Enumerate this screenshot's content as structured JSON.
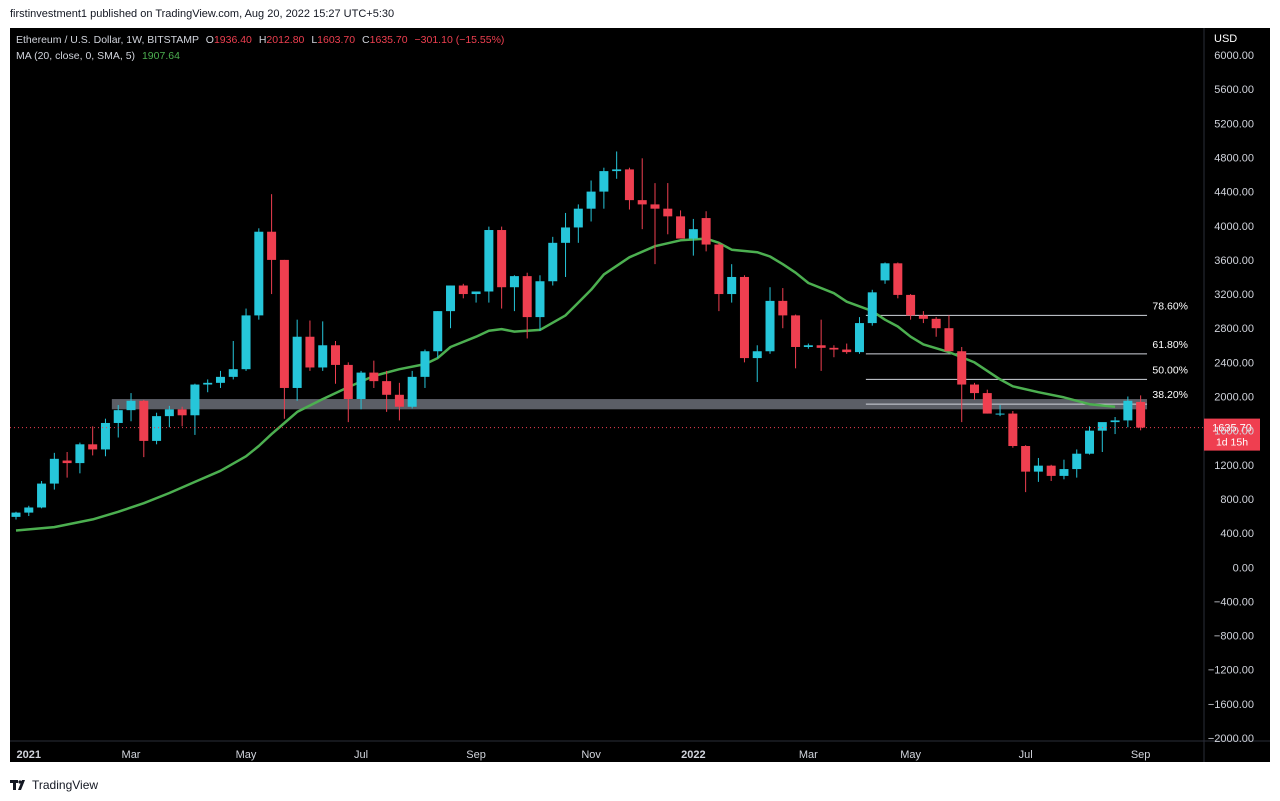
{
  "header": {
    "published_text": "firstinvestment1 published on TradingView.com, Aug 20, 2022 15:27 UTC+5:30"
  },
  "legend": {
    "symbol": "Ethereum / U.S. Dollar, 1W, BITSTAMP",
    "o_label": "O",
    "o_value": "1936.40",
    "h_label": "H",
    "h_value": "2012.80",
    "l_label": "L",
    "l_value": "1603.70",
    "c_label": "C",
    "c_value": "1635.70",
    "change": "−301.10 (−15.55%)",
    "ma_label": "MA (20, close, 0, SMA, 5)",
    "ma_value": "1907.64"
  },
  "price_axis": {
    "currency": "USD"
  },
  "price_marker": {
    "price": "1635.70",
    "countdown": "1d 15h"
  },
  "footer": {
    "brand": "TradingView"
  },
  "colors": {
    "up": "#26c6da",
    "down": "#ef3f50",
    "ma": "#4caf50",
    "zone": "#6b6f78",
    "fib": "#d1d4dc",
    "background": "#000000"
  },
  "chart_data": {
    "type": "candlestick",
    "instrument": "Ethereum / U.S. Dollar",
    "interval": "1W",
    "exchange": "BITSTAMP",
    "ylim": [
      -2000,
      6000
    ],
    "yticks": [
      {
        "value": 6000,
        "label": "6000.00"
      },
      {
        "value": 5600,
        "label": "5600.00"
      },
      {
        "value": 5200,
        "label": "5200.00"
      },
      {
        "value": 4800,
        "label": "4800.00"
      },
      {
        "value": 4400,
        "label": "4400.00"
      },
      {
        "value": 4000,
        "label": "4000.00"
      },
      {
        "value": 3600,
        "label": "3600.00"
      },
      {
        "value": 3200,
        "label": "3200.00"
      },
      {
        "value": 2800,
        "label": "2800.00"
      },
      {
        "value": 2400,
        "label": "2400.00"
      },
      {
        "value": 2000,
        "label": "2000.00"
      },
      {
        "value": 1600,
        "label": "1600.00"
      },
      {
        "value": 1200,
        "label": "1200.00"
      },
      {
        "value": 800,
        "label": "800.00"
      },
      {
        "value": 400,
        "label": "400.00"
      },
      {
        "value": 0,
        "label": "0.00"
      },
      {
        "value": -400,
        "label": "−400.00"
      },
      {
        "value": -800,
        "label": "−800.00"
      },
      {
        "value": -1200,
        "label": "−1200.00"
      },
      {
        "value": -1600,
        "label": "−1600.00"
      },
      {
        "value": -2000,
        "label": "−2000.00"
      }
    ],
    "xticks": [
      {
        "week": 1,
        "label": "2021",
        "bold": true
      },
      {
        "week": 9,
        "label": "Mar"
      },
      {
        "week": 18,
        "label": "May"
      },
      {
        "week": 27,
        "label": "Jul"
      },
      {
        "week": 36,
        "label": "Sep"
      },
      {
        "week": 45,
        "label": "Nov"
      },
      {
        "week": 53,
        "label": "2022",
        "bold": true
      },
      {
        "week": 62,
        "label": "Mar"
      },
      {
        "week": 70,
        "label": "May"
      },
      {
        "week": 79,
        "label": "Jul"
      },
      {
        "week": 88,
        "label": "Sep"
      }
    ],
    "candles": [
      {
        "o": 590,
        "h": 650,
        "l": 560,
        "c": 640
      },
      {
        "o": 640,
        "h": 720,
        "l": 600,
        "c": 700
      },
      {
        "o": 700,
        "h": 1010,
        "l": 690,
        "c": 980
      },
      {
        "o": 980,
        "h": 1340,
        "l": 910,
        "c": 1270
      },
      {
        "o": 1250,
        "h": 1350,
        "l": 1050,
        "c": 1220
      },
      {
        "o": 1220,
        "h": 1460,
        "l": 1100,
        "c": 1440
      },
      {
        "o": 1440,
        "h": 1650,
        "l": 1310,
        "c": 1380
      },
      {
        "o": 1380,
        "h": 1740,
        "l": 1300,
        "c": 1690
      },
      {
        "o": 1690,
        "h": 1900,
        "l": 1520,
        "c": 1840
      },
      {
        "o": 1840,
        "h": 2040,
        "l": 1710,
        "c": 1950
      },
      {
        "o": 1950,
        "h": 1960,
        "l": 1290,
        "c": 1480
      },
      {
        "o": 1480,
        "h": 1810,
        "l": 1440,
        "c": 1770
      },
      {
        "o": 1770,
        "h": 1890,
        "l": 1640,
        "c": 1850
      },
      {
        "o": 1850,
        "h": 1880,
        "l": 1650,
        "c": 1780
      },
      {
        "o": 1780,
        "h": 2150,
        "l": 1550,
        "c": 2140
      },
      {
        "o": 2140,
        "h": 2200,
        "l": 2050,
        "c": 2160
      },
      {
        "o": 2160,
        "h": 2300,
        "l": 2100,
        "c": 2230
      },
      {
        "o": 2230,
        "h": 2650,
        "l": 2200,
        "c": 2320
      },
      {
        "o": 2320,
        "h": 3030,
        "l": 2300,
        "c": 2950
      },
      {
        "o": 2950,
        "h": 3970,
        "l": 2900,
        "c": 3930
      },
      {
        "o": 3930,
        "h": 4370,
        "l": 3200,
        "c": 3600
      },
      {
        "o": 3600,
        "h": 3600,
        "l": 1740,
        "c": 2100
      },
      {
        "o": 2100,
        "h": 2900,
        "l": 1950,
        "c": 2700
      },
      {
        "o": 2700,
        "h": 2890,
        "l": 2300,
        "c": 2340
      },
      {
        "o": 2340,
        "h": 2880,
        "l": 2300,
        "c": 2600
      },
      {
        "o": 2600,
        "h": 2650,
        "l": 2150,
        "c": 2370
      },
      {
        "o": 2370,
        "h": 2400,
        "l": 1700,
        "c": 1970
      },
      {
        "o": 1970,
        "h": 2300,
        "l": 1850,
        "c": 2280
      },
      {
        "o": 2280,
        "h": 2420,
        "l": 2100,
        "c": 2180
      },
      {
        "o": 2180,
        "h": 2300,
        "l": 1820,
        "c": 2020
      },
      {
        "o": 2020,
        "h": 2160,
        "l": 1720,
        "c": 1880
      },
      {
        "o": 1880,
        "h": 2300,
        "l": 1860,
        "c": 2230
      },
      {
        "o": 2230,
        "h": 2550,
        "l": 2100,
        "c": 2530
      },
      {
        "o": 2530,
        "h": 3000,
        "l": 2450,
        "c": 3000
      },
      {
        "o": 3000,
        "h": 3300,
        "l": 2800,
        "c": 3300
      },
      {
        "o": 3300,
        "h": 3320,
        "l": 3150,
        "c": 3200
      },
      {
        "o": 3200,
        "h": 3230,
        "l": 3100,
        "c": 3230
      },
      {
        "o": 3230,
        "h": 3990,
        "l": 3100,
        "c": 3950
      },
      {
        "o": 3950,
        "h": 3990,
        "l": 3030,
        "c": 3280
      },
      {
        "o": 3280,
        "h": 3420,
        "l": 3000,
        "c": 3410
      },
      {
        "o": 3410,
        "h": 3450,
        "l": 2680,
        "c": 2930
      },
      {
        "o": 2930,
        "h": 3420,
        "l": 2770,
        "c": 3350
      },
      {
        "o": 3350,
        "h": 3870,
        "l": 3300,
        "c": 3800
      },
      {
        "o": 3800,
        "h": 4150,
        "l": 3400,
        "c": 3980
      },
      {
        "o": 3980,
        "h": 4250,
        "l": 3800,
        "c": 4200
      },
      {
        "o": 4200,
        "h": 4530,
        "l": 4050,
        "c": 4400
      },
      {
        "o": 4400,
        "h": 4680,
        "l": 4200,
        "c": 4640
      },
      {
        "o": 4640,
        "h": 4870,
        "l": 4550,
        "c": 4660
      },
      {
        "o": 4660,
        "h": 4680,
        "l": 4190,
        "c": 4300
      },
      {
        "o": 4300,
        "h": 4790,
        "l": 3960,
        "c": 4250
      },
      {
        "o": 4250,
        "h": 4500,
        "l": 3550,
        "c": 4200
      },
      {
        "o": 4200,
        "h": 4500,
        "l": 3900,
        "c": 4110
      },
      {
        "o": 4110,
        "h": 4180,
        "l": 3870,
        "c": 3850
      },
      {
        "o": 3850,
        "h": 4080,
        "l": 3650,
        "c": 3960
      },
      {
        "o": 4090,
        "h": 4170,
        "l": 3700,
        "c": 3780
      },
      {
        "o": 3780,
        "h": 3800,
        "l": 3000,
        "c": 3200
      },
      {
        "o": 3200,
        "h": 3550,
        "l": 3100,
        "c": 3400
      },
      {
        "o": 3400,
        "h": 3420,
        "l": 2400,
        "c": 2450
      },
      {
        "o": 2450,
        "h": 2600,
        "l": 2170,
        "c": 2530
      },
      {
        "o": 2530,
        "h": 3280,
        "l": 2500,
        "c": 3120
      },
      {
        "o": 3120,
        "h": 3270,
        "l": 2800,
        "c": 2950
      },
      {
        "o": 2950,
        "h": 2960,
        "l": 2330,
        "c": 2580
      },
      {
        "o": 2580,
        "h": 2620,
        "l": 2560,
        "c": 2600
      },
      {
        "o": 2600,
        "h": 2900,
        "l": 2300,
        "c": 2570
      },
      {
        "o": 2570,
        "h": 2600,
        "l": 2460,
        "c": 2550
      },
      {
        "o": 2550,
        "h": 2620,
        "l": 2500,
        "c": 2520
      },
      {
        "o": 2520,
        "h": 2930,
        "l": 2500,
        "c": 2860
      },
      {
        "o": 2860,
        "h": 3250,
        "l": 2830,
        "c": 3220
      },
      {
        "o": 3360,
        "h": 3570,
        "l": 3320,
        "c": 3560
      },
      {
        "o": 3560,
        "h": 3570,
        "l": 3150,
        "c": 3190
      },
      {
        "o": 3190,
        "h": 3200,
        "l": 2900,
        "c": 2950
      },
      {
        "o": 2950,
        "h": 3000,
        "l": 2860,
        "c": 2910
      },
      {
        "o": 2910,
        "h": 2930,
        "l": 2700,
        "c": 2800
      },
      {
        "o": 2800,
        "h": 2950,
        "l": 2550,
        "c": 2530
      },
      {
        "o": 2530,
        "h": 2580,
        "l": 1700,
        "c": 2140
      },
      {
        "o": 2140,
        "h": 2160,
        "l": 1960,
        "c": 2040
      },
      {
        "o": 2040,
        "h": 2080,
        "l": 1800,
        "c": 1800
      },
      {
        "o": 1800,
        "h": 1900,
        "l": 1770,
        "c": 1800
      },
      {
        "o": 1800,
        "h": 1830,
        "l": 1400,
        "c": 1420
      },
      {
        "o": 1420,
        "h": 1430,
        "l": 880,
        "c": 1120
      },
      {
        "o": 1120,
        "h": 1280,
        "l": 1000,
        "c": 1190
      },
      {
        "o": 1190,
        "h": 1200,
        "l": 1010,
        "c": 1070
      },
      {
        "o": 1070,
        "h": 1260,
        "l": 1030,
        "c": 1150
      },
      {
        "o": 1150,
        "h": 1380,
        "l": 1050,
        "c": 1330
      },
      {
        "o": 1330,
        "h": 1650,
        "l": 1320,
        "c": 1600
      },
      {
        "o": 1600,
        "h": 1680,
        "l": 1350,
        "c": 1700
      },
      {
        "o": 1700,
        "h": 1760,
        "l": 1560,
        "c": 1720
      },
      {
        "o": 1720,
        "h": 2000,
        "l": 1640,
        "c": 1950
      },
      {
        "o": 1936.4,
        "h": 2012.8,
        "l": 1603.7,
        "c": 1635.7
      }
    ],
    "moving_average": {
      "label": "MA (20, close, 0, SMA, 5)",
      "last_value": 1907.64,
      "points": [
        [
          0,
          430
        ],
        [
          3,
          470
        ],
        [
          6,
          560
        ],
        [
          8,
          650
        ],
        [
          10,
          750
        ],
        [
          12,
          870
        ],
        [
          14,
          1000
        ],
        [
          16,
          1130
        ],
        [
          18,
          1300
        ],
        [
          19,
          1420
        ],
        [
          20,
          1560
        ],
        [
          21,
          1690
        ],
        [
          22,
          1820
        ],
        [
          24,
          1970
        ],
        [
          26,
          2110
        ],
        [
          28,
          2240
        ],
        [
          30,
          2320
        ],
        [
          32,
          2380
        ],
        [
          33,
          2450
        ],
        [
          34,
          2580
        ],
        [
          36,
          2700
        ],
        [
          37,
          2770
        ],
        [
          38,
          2790
        ],
        [
          39,
          2760
        ],
        [
          41,
          2780
        ],
        [
          43,
          2950
        ],
        [
          44,
          3100
        ],
        [
          45,
          3250
        ],
        [
          46,
          3430
        ],
        [
          48,
          3630
        ],
        [
          50,
          3760
        ],
        [
          52,
          3830
        ],
        [
          54,
          3850
        ],
        [
          55,
          3800
        ],
        [
          56,
          3720
        ],
        [
          58,
          3690
        ],
        [
          59,
          3640
        ],
        [
          60,
          3550
        ],
        [
          61,
          3450
        ],
        [
          62,
          3330
        ],
        [
          64,
          3210
        ],
        [
          65,
          3110
        ],
        [
          67,
          3000
        ],
        [
          68,
          2900
        ],
        [
          69,
          2820
        ],
        [
          70,
          2700
        ],
        [
          71,
          2610
        ],
        [
          73,
          2520
        ],
        [
          75,
          2400
        ],
        [
          76,
          2300
        ],
        [
          77,
          2200
        ],
        [
          78,
          2120
        ],
        [
          80,
          2050
        ],
        [
          82,
          1990
        ],
        [
          84,
          1910
        ],
        [
          86,
          1880
        ]
      ]
    },
    "support_zone": {
      "from_week": 7.5,
      "to_week": 88.5,
      "low": 1850,
      "high": 1970
    },
    "fibonacci": [
      {
        "level": "78.60%",
        "price": 2950
      },
      {
        "level": "61.80%",
        "price": 2500
      },
      {
        "level": "50.00%",
        "price": 2200
      },
      {
        "level": "38.20%",
        "price": 1910
      }
    ],
    "fib_from_week": 66.5,
    "fib_to_week": 88.5
  }
}
